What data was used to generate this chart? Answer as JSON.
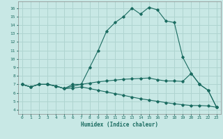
{
  "xlabel": "Humidex (Indice chaleur)",
  "background_color": "#c8e8e5",
  "grid_color": "#afd4d0",
  "line_color": "#1a6b60",
  "x_ticks": [
    0,
    1,
    2,
    3,
    4,
    5,
    6,
    7,
    8,
    9,
    10,
    11,
    12,
    13,
    14,
    15,
    16,
    17,
    18,
    19,
    20,
    21,
    22,
    23
  ],
  "y_ticks": [
    4,
    5,
    6,
    7,
    8,
    9,
    10,
    11,
    12,
    13,
    14,
    15,
    16
  ],
  "xlim": [
    -0.5,
    23.5
  ],
  "ylim": [
    3.5,
    16.8
  ],
  "line1_x": [
    0,
    1,
    2,
    3,
    4,
    5,
    6,
    7,
    8,
    9,
    10,
    11,
    12,
    13,
    14,
    15,
    16,
    17,
    18,
    19,
    20,
    21,
    22,
    23
  ],
  "line1_y": [
    7.0,
    6.7,
    7.0,
    7.0,
    6.8,
    6.5,
    7.0,
    7.0,
    9.0,
    11.0,
    13.3,
    14.3,
    15.0,
    16.0,
    15.3,
    16.1,
    15.8,
    14.5,
    14.3,
    10.2,
    8.3,
    7.0,
    6.3,
    4.3
  ],
  "line2_x": [
    0,
    1,
    2,
    3,
    4,
    5,
    6,
    7,
    8,
    9,
    10,
    11,
    12,
    13,
    14,
    15,
    16,
    17,
    18,
    19,
    20,
    21,
    22,
    23
  ],
  "line2_y": [
    7.0,
    6.7,
    7.0,
    7.0,
    6.8,
    6.5,
    6.8,
    7.0,
    7.15,
    7.3,
    7.4,
    7.5,
    7.6,
    7.65,
    7.7,
    7.75,
    7.55,
    7.4,
    7.4,
    7.35,
    8.3,
    7.0,
    6.3,
    4.3
  ],
  "line3_x": [
    0,
    1,
    2,
    3,
    4,
    5,
    6,
    7,
    8,
    9,
    10,
    11,
    12,
    13,
    14,
    15,
    16,
    17,
    18,
    19,
    20,
    21,
    22,
    23
  ],
  "line3_y": [
    7.0,
    6.7,
    7.0,
    7.0,
    6.8,
    6.5,
    6.55,
    6.7,
    6.5,
    6.3,
    6.1,
    5.9,
    5.7,
    5.5,
    5.3,
    5.15,
    5.0,
    4.85,
    4.7,
    4.6,
    4.5,
    4.5,
    4.45,
    4.3
  ]
}
